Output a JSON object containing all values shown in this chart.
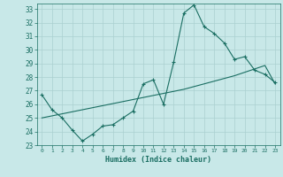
{
  "title": "",
  "xlabel": "Humidex (Indice chaleur)",
  "ylabel": "",
  "xlim": [
    -0.5,
    23.5
  ],
  "ylim": [
    23,
    33.4
  ],
  "yticks": [
    23,
    24,
    25,
    26,
    27,
    28,
    29,
    30,
    31,
    32,
    33
  ],
  "xticks": [
    0,
    1,
    2,
    3,
    4,
    5,
    6,
    7,
    8,
    9,
    10,
    11,
    12,
    13,
    14,
    15,
    16,
    17,
    18,
    19,
    20,
    21,
    22,
    23
  ],
  "line_color": "#1a6e62",
  "bg_color": "#c8e8e8",
  "grid_color": "#aad0d0",
  "curve1_x": [
    0,
    1,
    2,
    3,
    4,
    5,
    6,
    7,
    8,
    9,
    10,
    11,
    12,
    13,
    14,
    15,
    16,
    17,
    18,
    19,
    20,
    21,
    22,
    23
  ],
  "curve1_y": [
    26.7,
    25.6,
    25.0,
    24.1,
    23.3,
    23.8,
    24.4,
    24.5,
    25.0,
    25.5,
    27.5,
    27.8,
    26.0,
    29.1,
    32.7,
    33.3,
    31.7,
    31.2,
    30.5,
    29.3,
    29.5,
    28.5,
    28.2,
    27.6
  ],
  "curve2_x": [
    0,
    1,
    2,
    3,
    4,
    5,
    6,
    7,
    8,
    9,
    10,
    11,
    12,
    13,
    14,
    15,
    16,
    17,
    18,
    19,
    20,
    21,
    22,
    23
  ],
  "curve2_y": [
    25.0,
    25.15,
    25.3,
    25.45,
    25.6,
    25.75,
    25.9,
    26.05,
    26.2,
    26.35,
    26.5,
    26.65,
    26.8,
    26.95,
    27.1,
    27.3,
    27.5,
    27.7,
    27.9,
    28.1,
    28.35,
    28.6,
    28.85,
    27.5
  ]
}
